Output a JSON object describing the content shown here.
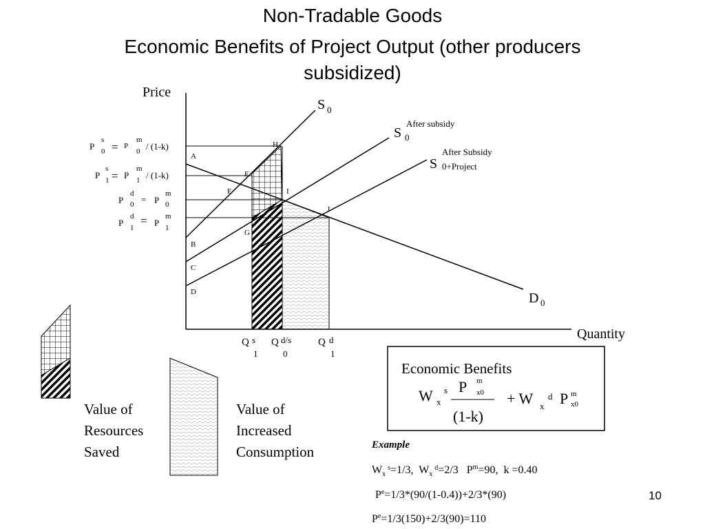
{
  "title": [
    "Non-Tradable Goods",
    "Economic Benefits of Project Output (other producers",
    "subsidized)"
  ],
  "axes": {
    "y_label": "Price",
    "x_label": "Quantity"
  },
  "curves": {
    "s0": {
      "main": "S",
      "sub": "0"
    },
    "s0_subsidy": {
      "main": "S",
      "sub": "0",
      "note": "After subsidy"
    },
    "s0_project": {
      "main": "S",
      "note": "After Subsidy",
      "sub": "0+Project"
    },
    "d0": {
      "main": "D",
      "sub": "0"
    }
  },
  "points": [
    "A",
    "H",
    "F",
    "E",
    "I",
    "J",
    "G",
    "B",
    "C",
    "D"
  ],
  "price_labels": [
    [
      "P",
      "s",
      "0",
      "=",
      "P",
      "m",
      "0",
      "/ (1-k)"
    ],
    [
      "P",
      "s",
      "1",
      "=",
      "P",
      "m",
      "1",
      "/ (1-k)"
    ],
    [
      "P",
      "d",
      "0",
      "=",
      "P",
      "m",
      "0"
    ],
    [
      "P",
      "d",
      "1",
      "=",
      "P",
      "m",
      "1"
    ]
  ],
  "quantity_labels": [
    [
      "Q",
      "s",
      "1"
    ],
    [
      "Q",
      "d/s",
      "0"
    ],
    [
      "Q",
      "d",
      "1"
    ]
  ],
  "legend": {
    "resources": [
      "Value of",
      "Resources",
      "Saved"
    ],
    "consumption": [
      "Value of",
      "Increased",
      "Consumption"
    ]
  },
  "benefits": {
    "title": "Economic Benefits",
    "formula": [
      "W",
      "x",
      "s",
      "P",
      "m",
      "x0",
      "(1-k)",
      "+ W",
      "x",
      "d",
      "P",
      "m",
      "x0"
    ]
  },
  "example": {
    "heading": "Example",
    "lines": [
      [
        "W",
        "x",
        "s",
        "=1/3,  W",
        "x",
        "d",
        "=2/3   P",
        "m",
        "=90,  k =0.40"
      ],
      [
        "P",
        "e",
        "=1/3*(90/(1-0.4))+2/3*(90)"
      ],
      [
        "P",
        "e",
        "=1/3(150)+2/3(90)=110"
      ]
    ]
  },
  "page_number": "10"
}
